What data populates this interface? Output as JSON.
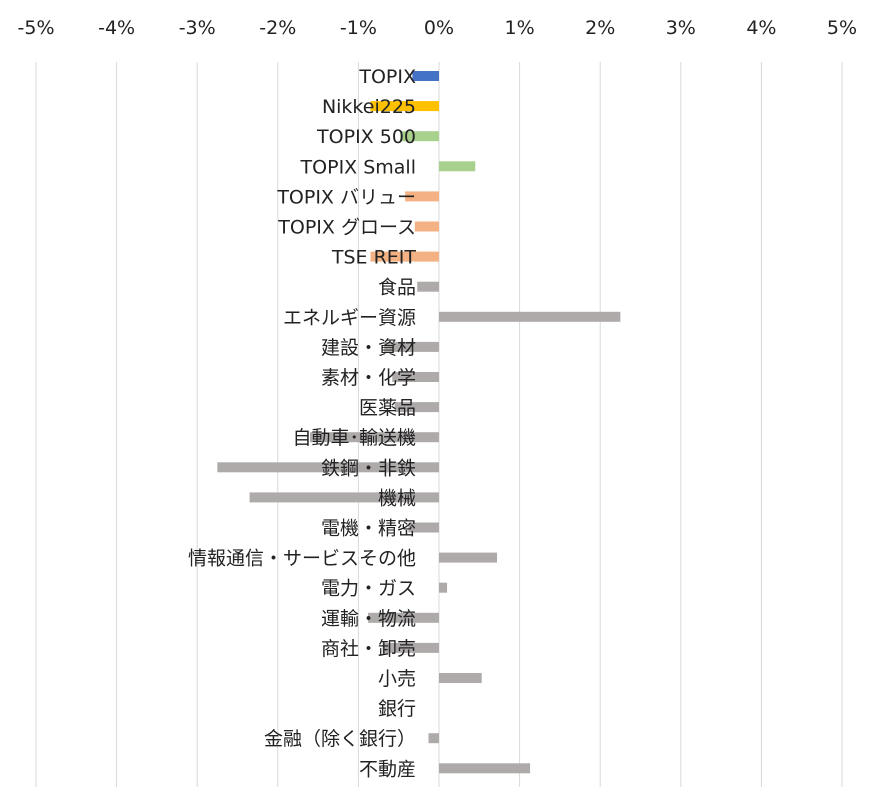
{
  "chart_data": {
    "type": "bar",
    "orientation": "horizontal",
    "title": "",
    "xlabel": "",
    "ylabel": "",
    "xlim": [
      -5,
      5
    ],
    "x_ticks": [
      -5,
      -4,
      -3,
      -2,
      -1,
      0,
      1,
      2,
      3,
      4,
      5
    ],
    "x_tick_labels": [
      "-5%",
      "-4%",
      "-3%",
      "-2%",
      "-1%",
      "0%",
      "1%",
      "2%",
      "3%",
      "4%",
      "5%"
    ],
    "x_axis_position": "top",
    "grid": true,
    "legend": false,
    "unit": "%",
    "categories": [
      "TOPIX",
      "Nikkei225",
      "TOPIX 500",
      "TOPIX Small",
      "TOPIX バリュー",
      "TOPIX グロース",
      "TSE REIT",
      "食品",
      "エネルギー資源",
      "建設・資材",
      "素材・化学",
      "医薬品",
      "自動車･輸送機",
      "鉄鋼・非鉄",
      "機械",
      "電機・精密",
      "情報通信・サービスその他",
      "電力・ガス",
      "運輸・物流",
      "商社・卸売",
      "小売",
      "銀行",
      "金融（除く銀行）",
      "不動産"
    ],
    "values": [
      -0.33,
      -0.85,
      -0.48,
      0.45,
      -0.42,
      -0.3,
      -0.85,
      -0.27,
      2.25,
      -0.68,
      -0.58,
      -0.55,
      -1.6,
      -2.75,
      -2.35,
      -0.38,
      0.72,
      0.1,
      -0.88,
      -0.7,
      0.53,
      0.0,
      -0.13,
      1.13
    ],
    "bar_colors": [
      "#4472c4",
      "#ffc000",
      "#a9d18e",
      "#a9d18e",
      "#f4b183",
      "#f4b183",
      "#f4b183",
      "#aeaaaa",
      "#aeaaaa",
      "#aeaaaa",
      "#aeaaaa",
      "#aeaaaa",
      "#aeaaaa",
      "#aeaaaa",
      "#aeaaaa",
      "#aeaaaa",
      "#aeaaaa",
      "#aeaaaa",
      "#aeaaaa",
      "#aeaaaa",
      "#aeaaaa",
      "#aeaaaa",
      "#aeaaaa",
      "#aeaaaa"
    ],
    "gridline_color": "#d9d9d9"
  }
}
